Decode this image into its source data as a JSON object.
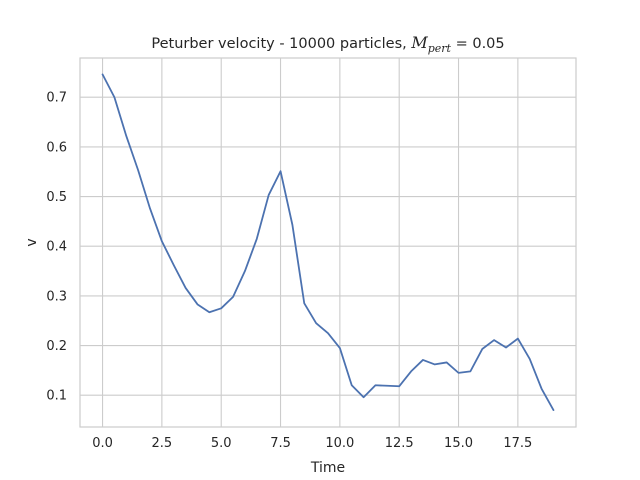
{
  "chart_data": {
    "type": "line",
    "title": {
      "prefix": "Peturber velocity - 10000 particles, ",
      "math_var": "M",
      "math_sub": "pert",
      "suffix": " = 0.05"
    },
    "xlabel": "Time",
    "ylabel": "v",
    "xlim": [
      -0.95,
      19.95
    ],
    "ylim": [
      0.036,
      0.779
    ],
    "xticks": [
      0.0,
      2.5,
      5.0,
      7.5,
      10.0,
      12.5,
      15.0,
      17.5
    ],
    "xtick_labels": [
      "0.0",
      "2.5",
      "5.0",
      "7.5",
      "10.0",
      "12.5",
      "15.0",
      "17.5"
    ],
    "yticks": [
      0.1,
      0.2,
      0.3,
      0.4,
      0.5,
      0.6,
      0.7
    ],
    "ytick_labels": [
      "0.1",
      "0.2",
      "0.3",
      "0.4",
      "0.5",
      "0.6",
      "0.7"
    ],
    "grid": true,
    "legend": "none",
    "series": [
      {
        "color": "#4c72b0",
        "x": [
          0.0,
          0.5,
          1.0,
          1.5,
          2.0,
          2.5,
          3.0,
          3.5,
          4.0,
          4.5,
          5.0,
          5.5,
          6.0,
          6.5,
          7.0,
          7.5,
          8.0,
          8.5,
          9.0,
          9.5,
          10.0,
          10.5,
          11.0,
          11.5,
          12.0,
          12.5,
          13.0,
          13.5,
          14.0,
          14.5,
          15.0,
          15.5,
          16.0,
          16.5,
          17.0,
          17.5,
          18.0,
          18.5,
          19.0
        ],
        "y": [
          0.746,
          0.7,
          0.622,
          0.553,
          0.476,
          0.41,
          0.362,
          0.316,
          0.283,
          0.267,
          0.275,
          0.298,
          0.35,
          0.415,
          0.503,
          0.551,
          0.443,
          0.285,
          0.245,
          0.225,
          0.195,
          0.12,
          0.096,
          0.12,
          0.119,
          0.118,
          0.148,
          0.171,
          0.162,
          0.166,
          0.145,
          0.148,
          0.193,
          0.211,
          0.196,
          0.214,
          0.173,
          0.113,
          0.07
        ]
      }
    ]
  }
}
